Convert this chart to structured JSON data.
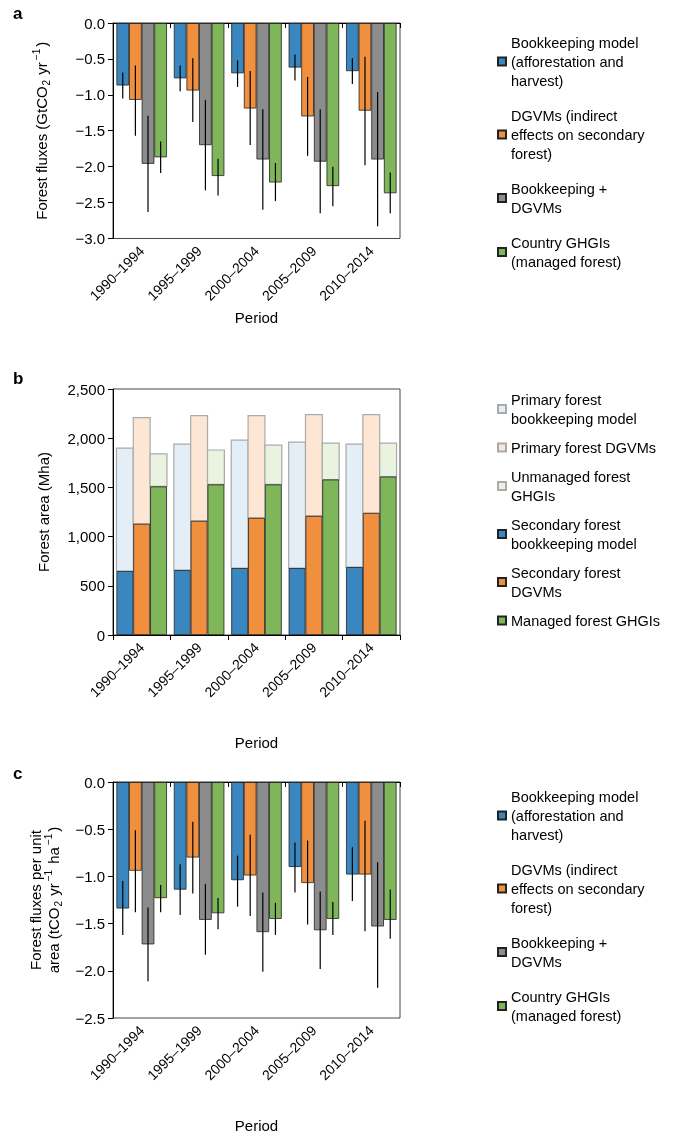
{
  "chart_data": [
    {
      "type": "bar",
      "title": "a",
      "xlabel": "Period",
      "ylabel": "Forest fluxes (GtCO$_{2}$ yr$^{−1}$)",
      "categories": [
        "1990–1994",
        "1995–1999",
        "2000–2004",
        "2005–2009",
        "2010–2014"
      ],
      "ylim": [
        -3,
        0
      ],
      "yticks": [
        {
          "value": -3,
          "label": "−3.0"
        },
        {
          "value": -2.5,
          "label": "−2.5"
        },
        {
          "value": -2,
          "label": "−2.0"
        },
        {
          "value": -1.5,
          "label": "−1.5"
        },
        {
          "value": -1,
          "label": "−1.0"
        },
        {
          "value": -0.5,
          "label": "−0.5"
        },
        {
          "value": 0,
          "label": "0.0"
        }
      ],
      "legend": "right",
      "series": [
        {
          "name": "Bookkeeping model (afforestation and harvest)",
          "color": "#3a87c0",
          "values": [
            -0.87,
            -0.77,
            -0.7,
            -0.62,
            -0.67
          ],
          "errors": [
            [
              -1.05,
              -0.69
            ],
            [
              -0.95,
              -0.59
            ],
            [
              -0.89,
              -0.52
            ],
            [
              -0.8,
              -0.44
            ],
            [
              -0.85,
              -0.49
            ]
          ]
        },
        {
          "name": "DGVMs (indirect effects on secondary forest)",
          "color": "#f0903e",
          "values": [
            -1.07,
            -0.94,
            -1.19,
            -1.3,
            -1.22
          ],
          "errors": [
            [
              -1.57,
              -0.59
            ],
            [
              -1.38,
              -0.49
            ],
            [
              -1.7,
              -0.67
            ],
            [
              -1.85,
              -0.75
            ],
            [
              -1.98,
              -0.47
            ]
          ]
        },
        {
          "name": "Bookkeeping + DGVMs",
          "color": "#8c8c8c",
          "values": [
            -1.96,
            -1.7,
            -1.9,
            -1.93,
            -1.9
          ],
          "errors": [
            [
              -2.63,
              -1.29
            ],
            [
              -2.33,
              -1.07
            ],
            [
              -2.6,
              -1.2
            ],
            [
              -2.65,
              -1.2
            ],
            [
              -2.83,
              -0.96
            ]
          ]
        },
        {
          "name": "Country GHGIs (managed forest)",
          "color": "#7fb65a",
          "values": [
            -1.87,
            -2.13,
            -2.22,
            -2.27,
            -2.37
          ],
          "errors": [
            [
              -2.09,
              -1.65
            ],
            [
              -2.4,
              -1.89
            ],
            [
              -2.48,
              -1.95
            ],
            [
              -2.55,
              -2.0
            ],
            [
              -2.65,
              -2.08
            ]
          ]
        }
      ]
    },
    {
      "type": "bar",
      "title": "b",
      "xlabel": "Period",
      "ylabel": "Forest area (Mha)",
      "categories": [
        "1990–1994",
        "1995–1999",
        "2000–2004",
        "2005–2009",
        "2010–2014"
      ],
      "ylim": [
        0,
        2500
      ],
      "yticks": [
        {
          "value": 0,
          "label": "0"
        },
        {
          "value": 500,
          "label": "500"
        },
        {
          "value": 1000,
          "label": "1,000"
        },
        {
          "value": 1500,
          "label": "1,500"
        },
        {
          "value": 2000,
          "label": "2,000"
        },
        {
          "value": 2500,
          "label": "2,500"
        }
      ],
      "legend": "right",
      "series": [
        {
          "name": "Primary forest bookkeeping model",
          "color": "#e3eef7",
          "values": [
            1250,
            1280,
            1300,
            1280,
            1250
          ],
          "base": [
            650,
            660,
            680,
            680,
            690
          ]
        },
        {
          "name": "Primary forest DGVMs",
          "color": "#fde7d4",
          "values": [
            1080,
            1070,
            1040,
            1030,
            1000
          ],
          "base": [
            1130,
            1160,
            1190,
            1210,
            1240
          ]
        },
        {
          "name": "Unmanaged forest GHGIs",
          "color": "#e9f3e0",
          "values": [
            330,
            350,
            400,
            370,
            340
          ],
          "base": [
            1510,
            1530,
            1530,
            1580,
            1610
          ]
        },
        {
          "name": "Secondary forest bookkeeping model",
          "color": "#3a87c0",
          "values": [
            650,
            660,
            680,
            680,
            690
          ]
        },
        {
          "name": "Secondary forest DGVMs",
          "color": "#f0903e",
          "values": [
            1130,
            1160,
            1190,
            1210,
            1240
          ]
        },
        {
          "name": "Managed forest GHGIs",
          "color": "#7fb65a",
          "values": [
            1510,
            1530,
            1530,
            1580,
            1610
          ]
        }
      ]
    },
    {
      "type": "bar",
      "title": "c",
      "xlabel": "Period",
      "ylabel": "Forest fluxes per unit\narea (tCO$_{2}$ yr$^{−1}$ ha$^{−1}$)",
      "categories": [
        "1990–1994",
        "1995–1999",
        "2000–2004",
        "2005–2009",
        "2010–2014"
      ],
      "ylim": [
        -2.5,
        0
      ],
      "yticks": [
        {
          "value": -2.5,
          "label": "−2.5"
        },
        {
          "value": -2,
          "label": "−2.0"
        },
        {
          "value": -1.5,
          "label": "−1.5"
        },
        {
          "value": -1,
          "label": "−1.0"
        },
        {
          "value": -0.5,
          "label": "−0.5"
        },
        {
          "value": 0,
          "label": "0.0"
        }
      ],
      "legend": "right",
      "series": [
        {
          "name": "Bookkeeping model (afforestation and harvest)",
          "color": "#3a87c0",
          "values": [
            -1.34,
            -1.14,
            -1.04,
            -0.9,
            -0.98
          ],
          "errors": [
            [
              -1.62,
              -1.05
            ],
            [
              -1.41,
              -0.87
            ],
            [
              -1.32,
              -0.78
            ],
            [
              -1.17,
              -0.64
            ],
            [
              -1.26,
              -0.69
            ]
          ]
        },
        {
          "name": "DGVMs (indirect effects on secondary forest)",
          "color": "#f0903e",
          "values": [
            -0.94,
            -0.8,
            -0.99,
            -1.07,
            -0.98
          ],
          "errors": [
            [
              -1.38,
              -0.51
            ],
            [
              -1.18,
              -0.42
            ],
            [
              -1.42,
              -0.56
            ],
            [
              -1.51,
              -0.62
            ],
            [
              -1.58,
              -0.41
            ]
          ]
        },
        {
          "name": "Bookkeeping + DGVMs",
          "color": "#8c8c8c",
          "values": [
            -1.72,
            -1.46,
            -1.59,
            -1.57,
            -1.53
          ],
          "errors": [
            [
              -2.11,
              -1.33
            ],
            [
              -1.83,
              -1.08
            ],
            [
              -2.01,
              -1.17
            ],
            [
              -1.98,
              -1.16
            ],
            [
              -2.18,
              -0.85
            ]
          ]
        },
        {
          "name": "Country GHGIs (managed forest)",
          "color": "#7fb65a",
          "values": [
            -1.23,
            -1.39,
            -1.45,
            -1.45,
            -1.46
          ],
          "errors": [
            [
              -1.38,
              -1.09
            ],
            [
              -1.56,
              -1.23
            ],
            [
              -1.62,
              -1.28
            ],
            [
              -1.62,
              -1.27
            ],
            [
              -1.66,
              -1.14
            ]
          ]
        }
      ]
    }
  ]
}
